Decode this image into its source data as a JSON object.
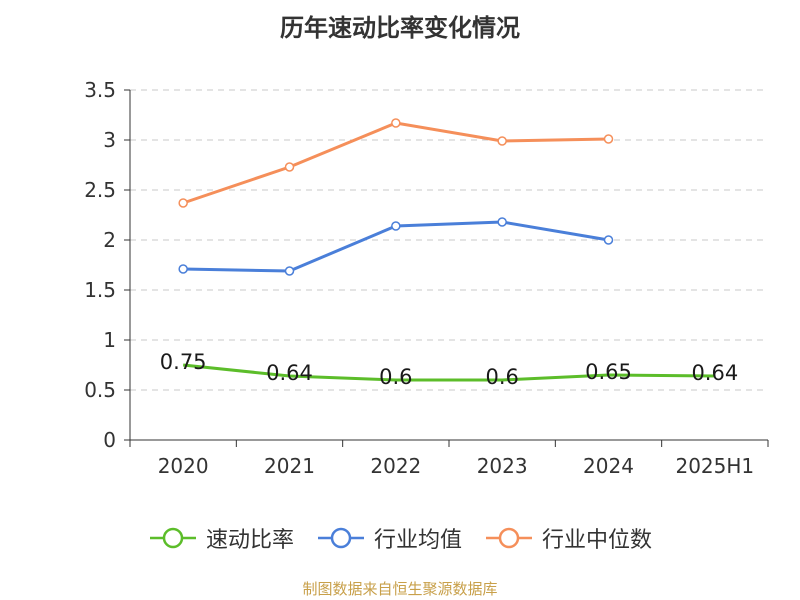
{
  "title": "历年速动比率变化情况",
  "source": "制图数据来自恒生聚源数据库",
  "colors": {
    "quick_ratio": "#5cbd2a",
    "industry_mean": "#4a7fd9",
    "industry_median": "#f58f5a",
    "grid": "#c8c8c8",
    "axis": "#333333"
  },
  "chart_data": {
    "type": "line",
    "title": "历年速动比率变化情况",
    "categories": [
      "2020",
      "2021",
      "2022",
      "2023",
      "2024",
      "2025H1"
    ],
    "ylim": [
      0,
      3.5
    ],
    "yticks": [
      "0",
      "0.5",
      "1",
      "1.5",
      "2",
      "2.5",
      "3",
      "3.5"
    ],
    "grid": true,
    "legend_position": "bottom",
    "series": [
      {
        "name": "速动比率",
        "color_key": "quick_ratio",
        "values": [
          0.75,
          0.64,
          0.6,
          0.6,
          0.65,
          0.64
        ],
        "data_labels": [
          "0.75",
          "0.64",
          "0.6",
          "0.6",
          "0.65",
          "0.64"
        ]
      },
      {
        "name": "行业均值",
        "color_key": "industry_mean",
        "values": [
          1.71,
          1.69,
          2.14,
          2.18,
          2.0,
          null
        ]
      },
      {
        "name": "行业中位数",
        "color_key": "industry_median",
        "values": [
          2.37,
          2.73,
          3.17,
          2.99,
          3.01,
          null
        ]
      }
    ]
  }
}
